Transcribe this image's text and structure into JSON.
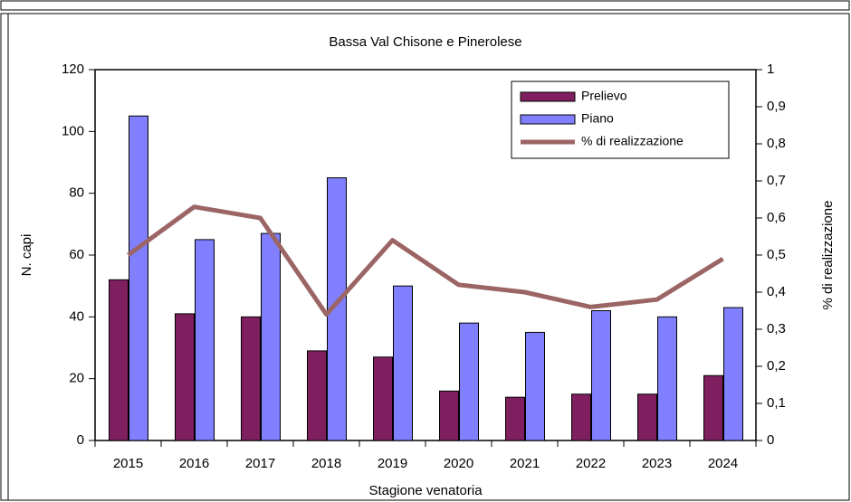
{
  "chart_data": {
    "type": "bar_line",
    "title": "Bassa Val Chisone e Pinerolese",
    "x_label": "Stagione venatoria",
    "y_label": "N. capi",
    "y2_label": "% di realizzazione",
    "categories": [
      "2015",
      "2016",
      "2017",
      "2018",
      "2019",
      "2020",
      "2021",
      "2022",
      "2023",
      "2024"
    ],
    "series": [
      {
        "name": "Prelievo",
        "type": "bar",
        "color": "#801f5f",
        "values": [
          52,
          41,
          40,
          29,
          27,
          16,
          14,
          15,
          15,
          21
        ]
      },
      {
        "name": "Piano",
        "type": "bar",
        "color": "#8080ff",
        "values": [
          105,
          65,
          67,
          85,
          50,
          38,
          35,
          42,
          40,
          43
        ]
      },
      {
        "name": "% di realizzazione",
        "type": "line",
        "axis": "y2",
        "color": "#9c6565",
        "values": [
          0.5,
          0.63,
          0.6,
          0.34,
          0.54,
          0.42,
          0.4,
          0.36,
          0.38,
          0.49
        ]
      }
    ],
    "ylim": [
      0,
      120
    ],
    "yticks": [
      0,
      20,
      40,
      60,
      80,
      100,
      120
    ],
    "y2lim": [
      0,
      1
    ],
    "y2ticks": [
      0,
      {
        "value": 0.1,
        "label": "0,1"
      },
      {
        "value": 0.2,
        "label": "0,2"
      },
      {
        "value": 0.3,
        "label": "0,3"
      },
      {
        "value": 0.4,
        "label": "0,4"
      },
      {
        "value": 0.5,
        "label": "0,5"
      },
      {
        "value": 0.6,
        "label": "0,6"
      },
      {
        "value": 0.7,
        "label": "0,7"
      },
      {
        "value": 0.8,
        "label": "0,8"
      },
      {
        "value": 0.9,
        "label": "0,9"
      },
      1
    ],
    "legend": "top-right"
  }
}
